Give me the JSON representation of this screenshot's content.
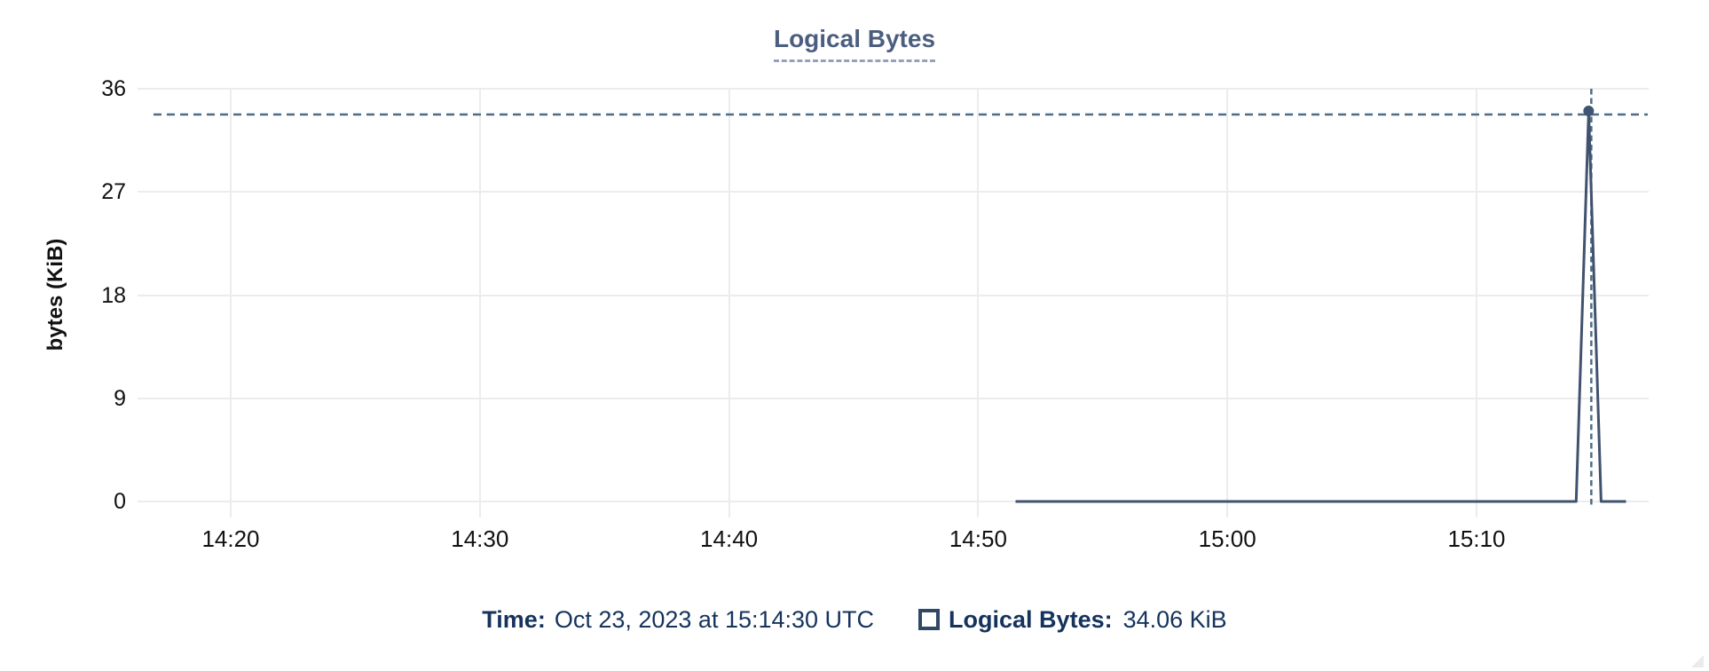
{
  "chart": {
    "title": "Logical Bytes",
    "y_axis_label": "bytes (KiB)",
    "y_ticks": [
      36,
      27,
      18,
      9,
      0
    ],
    "x_ticks": [
      "14:20",
      "14:30",
      "14:40",
      "14:50",
      "15:00",
      "15:10"
    ]
  },
  "tooltip": {
    "time_label": "Time:",
    "time_value": "Oct 23, 2023 at 15:14:30 UTC",
    "series_label": "Logical Bytes:",
    "series_value": "34.06 KiB"
  },
  "colors": {
    "line": "#41526E",
    "marker": "#3F5472",
    "crosshair": "#4E6C85",
    "gridline": "#ECECEC",
    "title": "#4C5E80",
    "title_underline": "#93A1BD",
    "axis_text": "#111111",
    "tooltip_text": "#15335C",
    "swatch_border": "#2F4866"
  },
  "chart_data": {
    "type": "line",
    "title": "Logical Bytes",
    "xlabel": "",
    "ylabel": "bytes (KiB)",
    "ylim": [
      0,
      36
    ],
    "y_ticks": [
      0,
      9,
      18,
      27,
      36
    ],
    "x_ticks": [
      "14:20",
      "14:30",
      "14:40",
      "14:50",
      "15:00",
      "15:10"
    ],
    "x_range_approx": [
      "14:16:15",
      "15:16:55"
    ],
    "grid": true,
    "legend_position": "bottom",
    "series": [
      {
        "name": "Logical Bytes",
        "unit": "KiB",
        "points": [
          [
            "14:51:30",
            0
          ],
          [
            "15:14:00",
            0
          ],
          [
            "15:14:30",
            34.06
          ],
          [
            "15:15:00",
            0
          ],
          [
            "15:16:00",
            0
          ]
        ]
      }
    ],
    "hover": {
      "date": "Oct 23, 2023",
      "time": "15:14:30",
      "timezone": "UTC",
      "value_kib": 34.06,
      "value_display": "34.06 KiB",
      "crosshair": true
    }
  }
}
